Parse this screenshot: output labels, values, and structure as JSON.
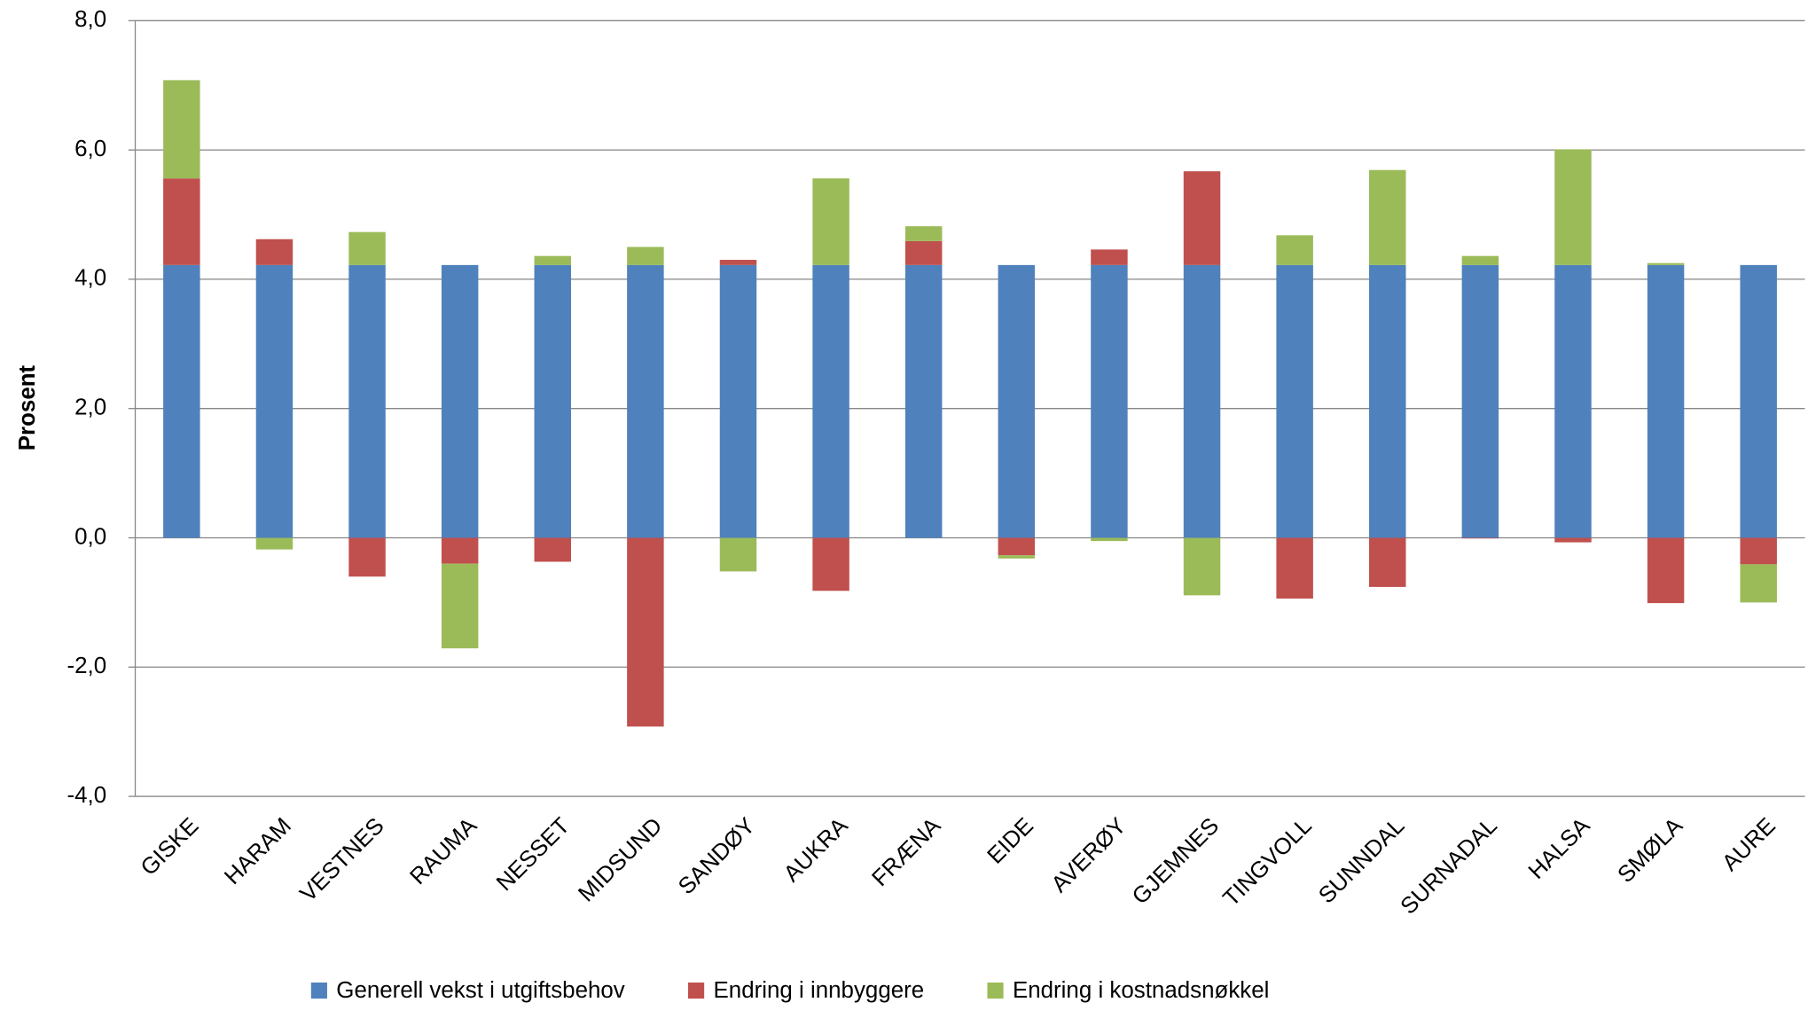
{
  "chart_data": {
    "type": "stacked-bar",
    "y_label": "Prosent",
    "categories": [
      "GISKE",
      "HARAM",
      "VESTNES",
      "RAUMA",
      "NESSET",
      "MIDSUND",
      "SANDØY",
      "AUKRA",
      "FRÆNA",
      "EIDE",
      "AVERØY",
      "GJEMNES",
      "TINGVOLL",
      "SUNNDAL",
      "SURNADAL",
      "HALSA",
      "SMØLA",
      "AURE"
    ],
    "series": [
      {
        "name": "Generell vekst i utgiftsbehov",
        "color": "#4f81bd",
        "values": [
          4.22,
          4.22,
          4.22,
          4.22,
          4.22,
          4.22,
          4.22,
          4.22,
          4.22,
          4.22,
          4.22,
          4.22,
          4.22,
          4.22,
          4.22,
          4.22,
          4.22,
          4.22
        ]
      },
      {
        "name": "Endring i innbyggere",
        "color": "#c0504d",
        "values": [
          1.34,
          0.4,
          -0.6,
          -0.4,
          -0.37,
          -2.92,
          0.08,
          -0.82,
          0.37,
          -0.27,
          0.24,
          1.45,
          -0.94,
          -0.76,
          -0.01,
          -0.07,
          -1.01,
          -0.41
        ]
      },
      {
        "name": "Endring i kostnadsnøkkel",
        "color": "#9bbb59",
        "values": [
          1.52,
          -0.18,
          0.51,
          -1.31,
          0.14,
          0.28,
          -0.52,
          1.34,
          0.23,
          -0.05,
          -0.05,
          -0.89,
          0.46,
          1.47,
          0.14,
          1.79,
          0.03,
          -0.59
        ]
      }
    ],
    "ylim": [
      -4,
      8
    ],
    "yticks": [
      {
        "value": -4,
        "label": "-4,0"
      },
      {
        "value": -2,
        "label": "-2,0"
      },
      {
        "value": 0,
        "label": "0,0"
      },
      {
        "value": 2,
        "label": "2,0"
      },
      {
        "value": 4,
        "label": "4,0"
      },
      {
        "value": 6,
        "label": "6,0"
      },
      {
        "value": 8,
        "label": "8,0"
      }
    ],
    "grid": true,
    "legend": "bottom"
  }
}
